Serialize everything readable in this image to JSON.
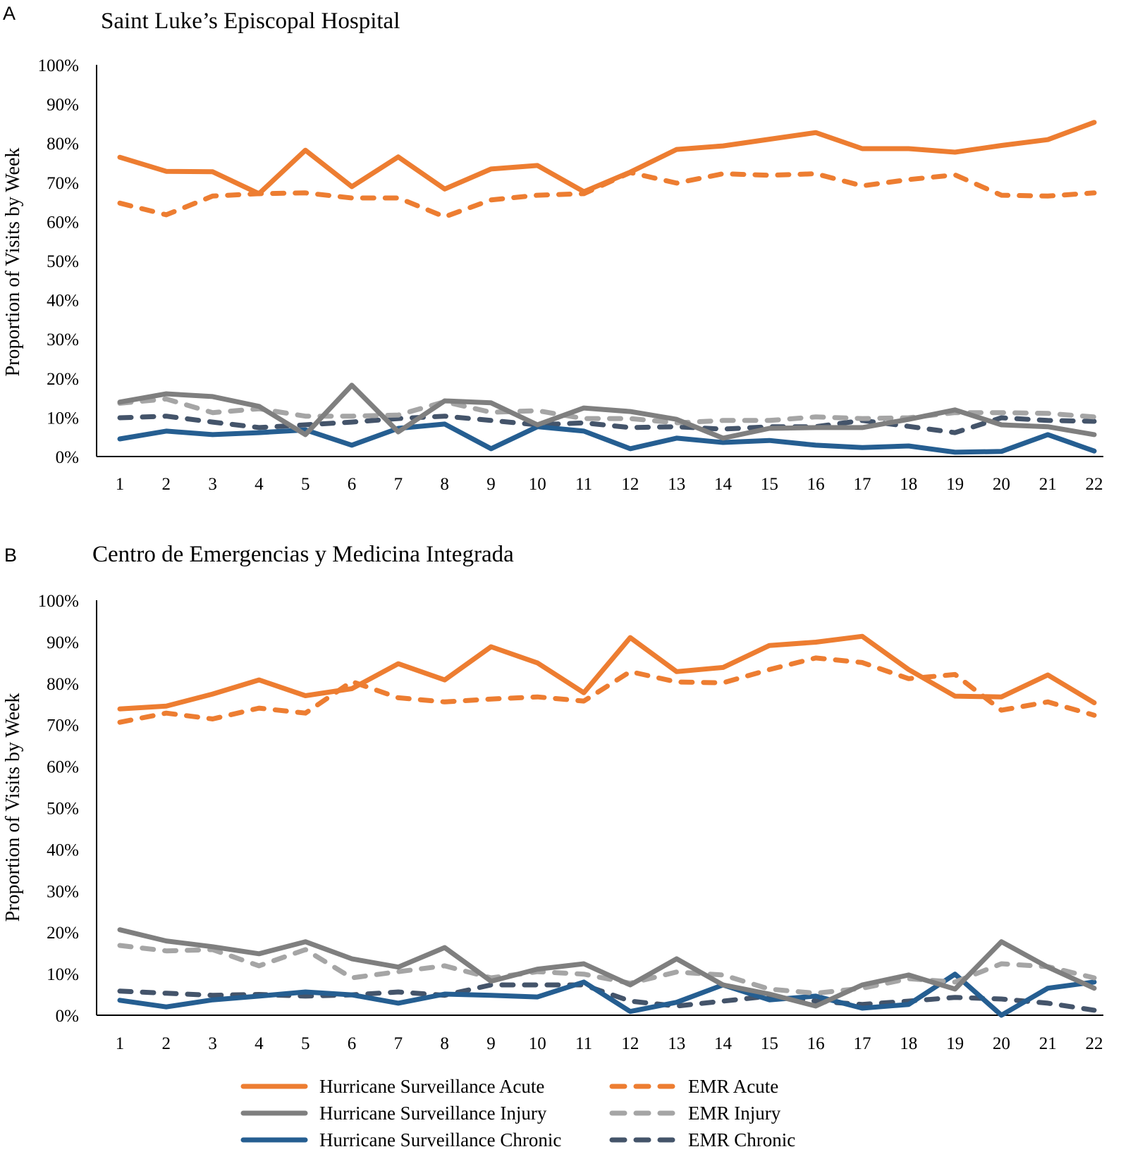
{
  "legend": [
    {
      "key": "hs_acute",
      "label": "Hurricane Surveillance Acute",
      "color": "#ED7D31",
      "dashed": false
    },
    {
      "key": "emr_acute",
      "label": "EMR Acute",
      "color": "#ED7D31",
      "dashed": true
    },
    {
      "key": "hs_injury",
      "label": "Hurricane Surveillance Injury",
      "color": "#7F7F7F",
      "dashed": false
    },
    {
      "key": "emr_injury",
      "label": "EMR Injury",
      "color": "#A5A5A5",
      "dashed": true
    },
    {
      "key": "hs_chronic",
      "label": "Hurricane Surveillance Chronic",
      "color": "#255E91",
      "dashed": false
    },
    {
      "key": "emr_chronic",
      "label": "EMR Chronic",
      "color": "#44546A",
      "dashed": true
    }
  ],
  "chart_data": [
    {
      "type": "line",
      "panel": "A",
      "title": "Saint Luke’s Episcopal Hospital",
      "xlabel": "",
      "ylabel": "Proportion of Visits by Week",
      "ylim": [
        0,
        100
      ],
      "yticks": [
        "0%",
        "10%",
        "20%",
        "30%",
        "40%",
        "50%",
        "60%",
        "70%",
        "80%",
        "90%",
        "100%"
      ],
      "x": [
        1,
        2,
        3,
        4,
        5,
        6,
        7,
        8,
        9,
        10,
        11,
        12,
        13,
        14,
        15,
        16,
        17,
        18,
        19,
        20,
        21,
        22
      ],
      "grid": false,
      "legend_position": "bottom",
      "series": [
        {
          "key": "hs_acute",
          "name": "Hurricane Surveillance Acute",
          "values": [
            76.4,
            72.8,
            72.7,
            67.1,
            78.2,
            68.9,
            76.5,
            68.3,
            73.4,
            74.3,
            67.6,
            72.6,
            78.4,
            79.3,
            81.0,
            82.7,
            78.6,
            78.6,
            77.7,
            79.4,
            80.9,
            85.3
          ]
        },
        {
          "key": "emr_acute",
          "name": "EMR Acute",
          "values": [
            64.7,
            61.7,
            66.5,
            67.1,
            67.3,
            66.0,
            66.0,
            61.2,
            65.5,
            66.7,
            67.1,
            72.5,
            69.8,
            72.2,
            71.8,
            72.2,
            69.1,
            70.7,
            71.9,
            66.7,
            66.5,
            67.3
          ]
        },
        {
          "key": "hs_injury",
          "name": "Hurricane Surveillance Injury",
          "values": [
            13.9,
            16.0,
            15.3,
            12.8,
            5.6,
            18.2,
            6.3,
            14.2,
            13.7,
            8.1,
            12.4,
            11.5,
            9.5,
            4.7,
            7.2,
            7.4,
            7.4,
            9.5,
            11.9,
            8.1,
            7.6,
            5.6
          ]
        },
        {
          "key": "emr_injury",
          "name": "EMR Injury",
          "values": [
            13.6,
            14.7,
            11.2,
            12.2,
            10.3,
            10.3,
            10.6,
            14.0,
            11.3,
            11.7,
            9.7,
            9.7,
            8.6,
            9.2,
            9.2,
            10.1,
            9.7,
            9.9,
            11.2,
            11.2,
            11.0,
            10.1
          ]
        },
        {
          "key": "hs_chronic",
          "name": "Hurricane Surveillance Chronic",
          "values": [
            4.5,
            6.5,
            5.6,
            6.1,
            6.8,
            2.9,
            7.2,
            8.3,
            2.0,
            7.6,
            6.5,
            2.0,
            4.7,
            3.6,
            4.1,
            2.9,
            2.3,
            2.7,
            1.1,
            1.3,
            5.6,
            1.4
          ]
        },
        {
          "key": "emr_chronic",
          "name": "EMR Chronic",
          "values": [
            9.9,
            10.3,
            8.8,
            7.4,
            8.1,
            8.8,
            9.7,
            10.3,
            9.2,
            8.1,
            8.6,
            7.4,
            7.6,
            7.0,
            7.6,
            7.6,
            9.2,
            7.7,
            6.1,
            9.9,
            9.2,
            9.0
          ]
        }
      ]
    },
    {
      "type": "line",
      "panel": "B",
      "title": "Centro de Emergencias y Medicina Integrada",
      "xlabel": "",
      "ylabel": "Proportion of Visits by Week",
      "ylim": [
        0,
        100
      ],
      "yticks": [
        "0%",
        "10%",
        "20%",
        "30%",
        "40%",
        "50%",
        "60%",
        "70%",
        "80%",
        "90%",
        "100%"
      ],
      "x": [
        1,
        2,
        3,
        4,
        5,
        6,
        7,
        8,
        9,
        10,
        11,
        12,
        13,
        14,
        15,
        16,
        17,
        18,
        19,
        20,
        21,
        22
      ],
      "grid": false,
      "legend_position": "bottom",
      "series": [
        {
          "key": "hs_acute",
          "name": "Hurricane Surveillance Acute",
          "values": [
            73.8,
            74.5,
            77.4,
            80.8,
            77.0,
            78.7,
            84.7,
            80.8,
            88.8,
            84.9,
            77.7,
            91.0,
            82.8,
            83.8,
            89.1,
            89.9,
            91.3,
            83.3,
            76.9,
            76.7,
            82.0,
            75.3
          ]
        },
        {
          "key": "emr_acute",
          "name": "EMR Acute",
          "values": [
            70.6,
            72.8,
            71.4,
            74.0,
            72.8,
            80.4,
            76.5,
            75.5,
            76.2,
            76.7,
            75.7,
            82.8,
            80.3,
            80.1,
            83.3,
            86.1,
            85.0,
            81.1,
            82.1,
            73.5,
            75.5,
            72.3
          ]
        },
        {
          "key": "hs_injury",
          "name": "Hurricane Surveillance Injury",
          "values": [
            20.6,
            17.9,
            16.5,
            14.8,
            17.7,
            13.6,
            11.6,
            16.3,
            8.2,
            11.1,
            12.4,
            7.3,
            13.6,
            7.3,
            5.1,
            2.2,
            7.3,
            9.7,
            6.3,
            17.7,
            11.6,
            6.5
          ]
        },
        {
          "key": "emr_injury",
          "name": "EMR Injury",
          "values": [
            16.8,
            15.5,
            15.8,
            11.9,
            15.8,
            9.0,
            10.5,
            11.9,
            9.0,
            10.5,
            9.9,
            7.7,
            10.4,
            9.7,
            6.3,
            5.3,
            6.5,
            8.8,
            8.0,
            12.4,
            11.7,
            9.0
          ]
        },
        {
          "key": "hs_chronic",
          "name": "Hurricane Surveillance Chronic",
          "values": [
            3.6,
            2.0,
            3.7,
            4.6,
            5.6,
            4.9,
            2.9,
            5.1,
            4.8,
            4.4,
            8.0,
            0.9,
            3.1,
            7.3,
            3.7,
            4.6,
            1.7,
            2.6,
            9.9,
            0.0,
            6.5,
            8.0
          ]
        },
        {
          "key": "emr_chronic",
          "name": "EMR Chronic",
          "values": [
            5.8,
            5.3,
            4.8,
            5.0,
            4.6,
            4.9,
            5.6,
            4.8,
            7.3,
            7.3,
            7.3,
            3.4,
            2.2,
            3.4,
            4.6,
            3.4,
            2.6,
            3.4,
            4.3,
            3.9,
            2.9,
            1.2
          ]
        }
      ]
    }
  ]
}
